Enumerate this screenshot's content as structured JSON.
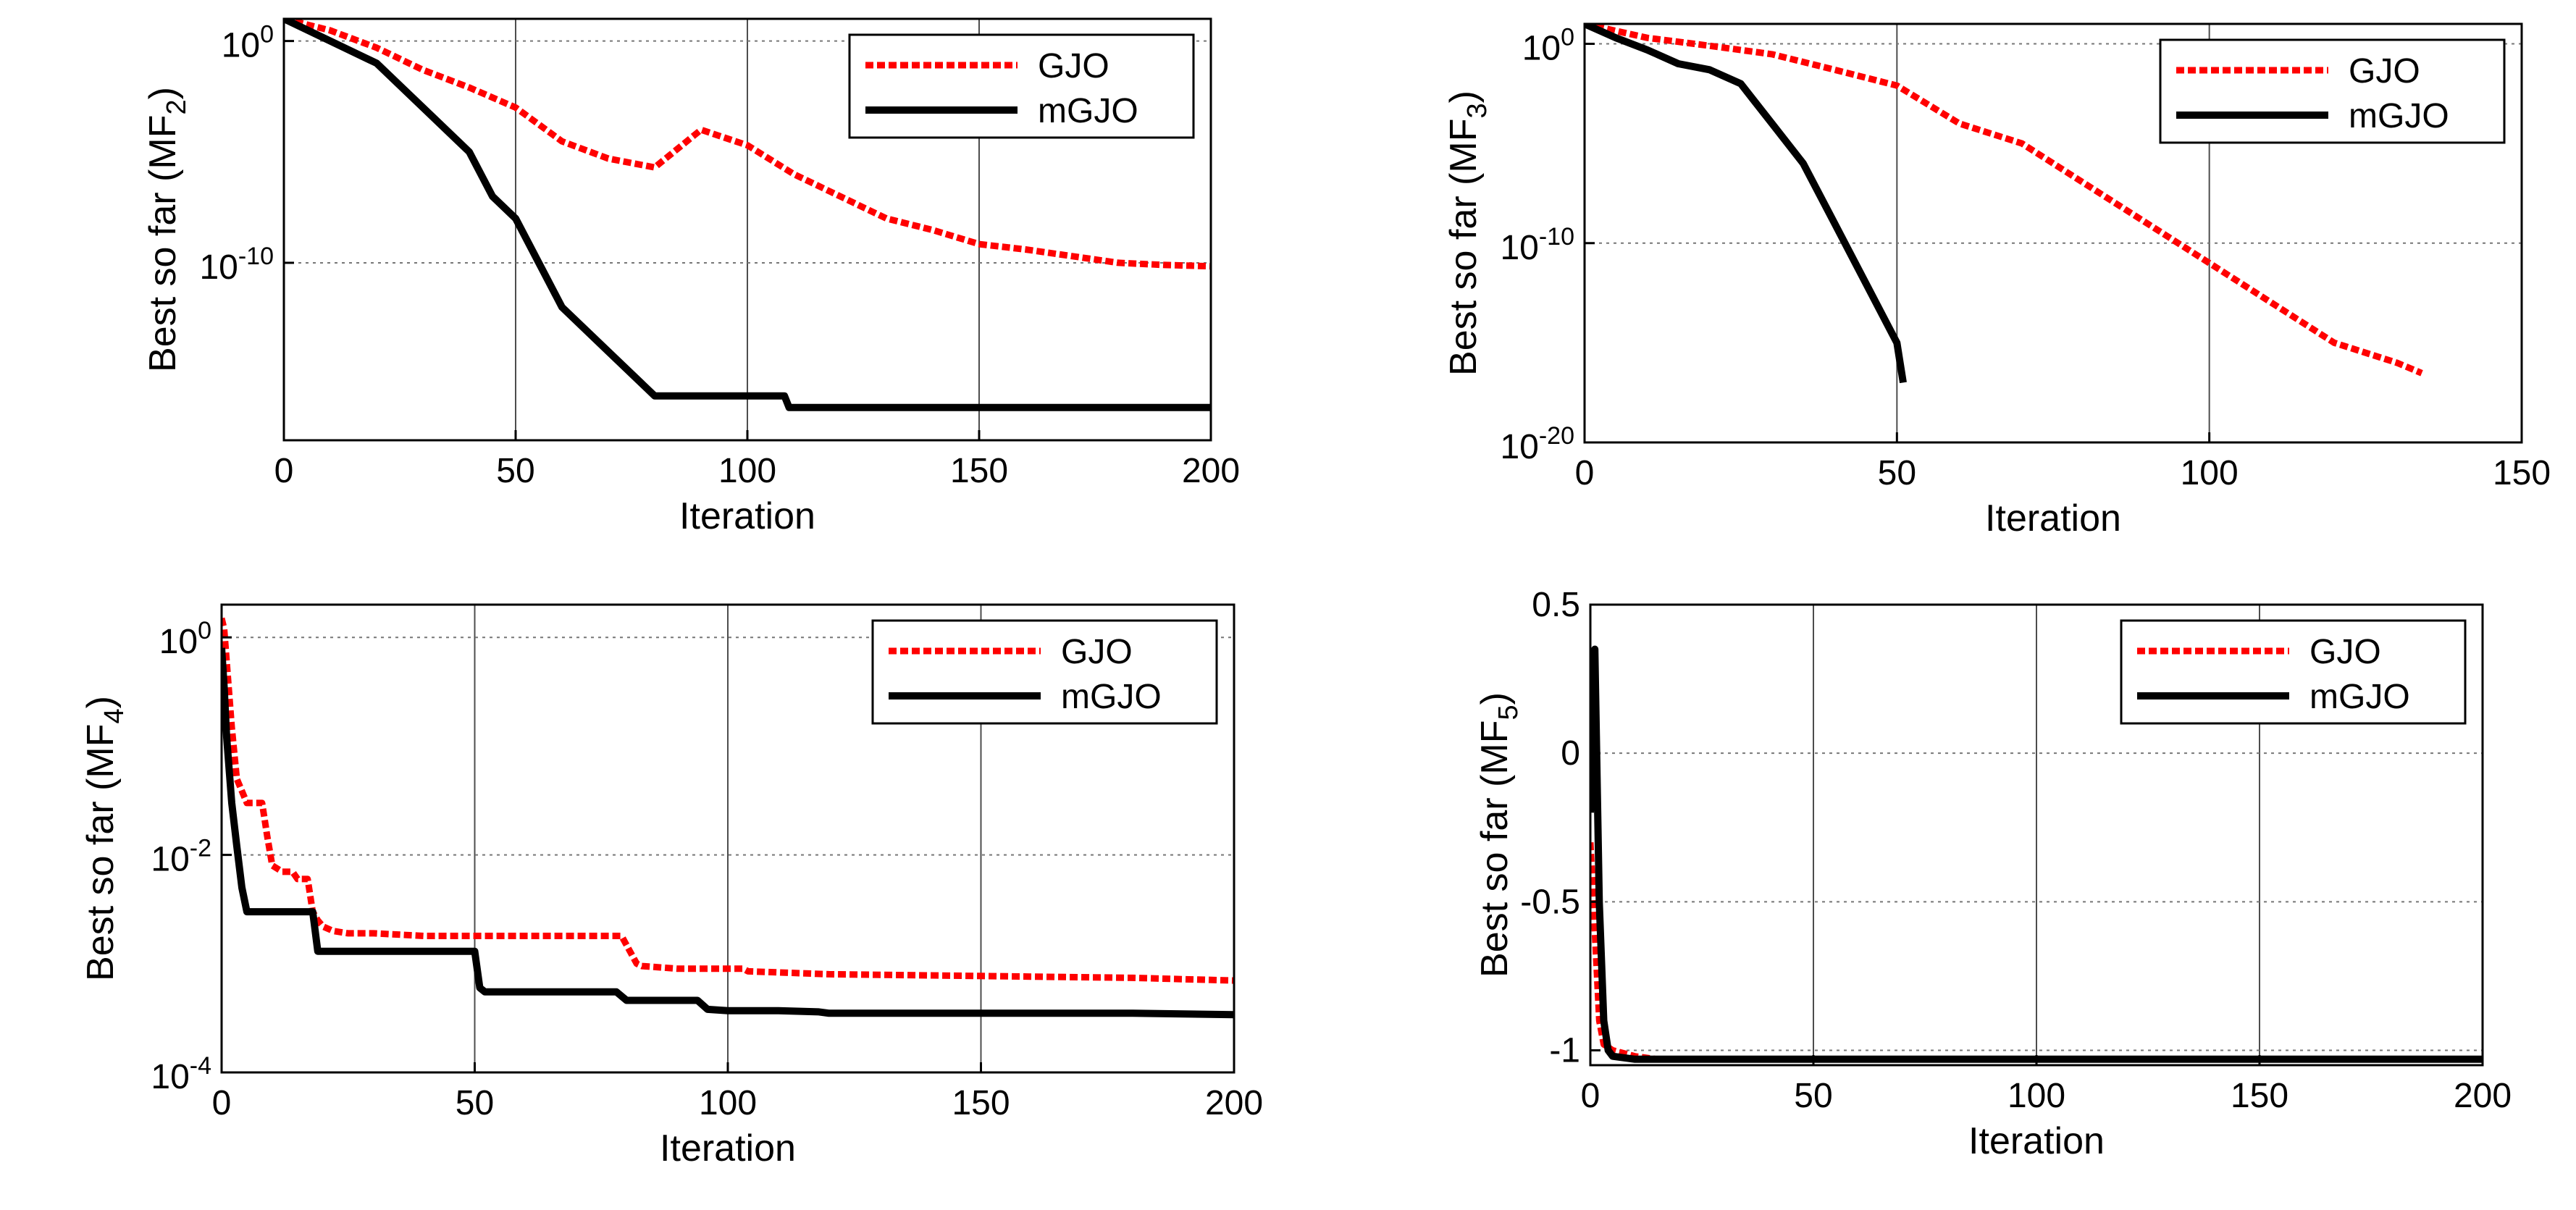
{
  "chart_data": [
    {
      "type": "line",
      "title": "",
      "xlabel": "Iteration",
      "ylabel": {
        "prefix": "Best so far (MF",
        "sub": "2",
        "suffix": ")"
      },
      "yscale": "log",
      "xlim": [
        0,
        200
      ],
      "ylim": [
        1e-18,
        10
      ],
      "xticks": [
        0,
        50,
        100,
        150,
        200
      ],
      "xtick_labels": [
        "0",
        "50",
        "100",
        "150",
        "200"
      ],
      "yticks": [
        1,
        1e-10
      ],
      "ytick_labels": [
        {
          "base": "10",
          "exp": "0"
        },
        {
          "base": "10",
          "exp": "-10"
        }
      ],
      "legend": {
        "position": "top-right"
      },
      "series": [
        {
          "name": "GJO",
          "color": "#ff0000",
          "dash": "dotted",
          "x": [
            0,
            10,
            20,
            30,
            40,
            50,
            60,
            70,
            80,
            90,
            100,
            110,
            120,
            130,
            140,
            150,
            160,
            170,
            180,
            190,
            200
          ],
          "y": [
            10,
            3,
            0.5,
            0.05,
            0.008,
            0.001,
            3e-05,
            5e-06,
            2e-06,
            0.0001,
            2e-05,
            1e-06,
            1e-07,
            1e-08,
            3e-09,
            7e-10,
            4e-10,
            2e-10,
            1e-10,
            8e-11,
            7e-11
          ]
        },
        {
          "name": "mGJO",
          "color": "#000000",
          "dash": "solid",
          "x": [
            0,
            10,
            20,
            30,
            40,
            45,
            50,
            55,
            60,
            70,
            80,
            85,
            100,
            108,
            109,
            200
          ],
          "y": [
            10,
            1,
            0.1,
            0.001,
            1e-05,
            1e-07,
            1e-08,
            1e-10,
            1e-12,
            1e-14,
            1e-16,
            1e-16,
            1e-16,
            1e-16,
            3e-17,
            3e-17
          ]
        }
      ]
    },
    {
      "type": "line",
      "title": "",
      "xlabel": "Iteration",
      "ylabel": {
        "prefix": "Best so far (MF",
        "sub": "3",
        "suffix": ")"
      },
      "yscale": "log",
      "xlim": [
        0,
        150
      ],
      "ylim": [
        1e-20,
        10
      ],
      "xticks": [
        0,
        50,
        100,
        150
      ],
      "xtick_labels": [
        "0",
        "50",
        "100",
        "150"
      ],
      "yticks": [
        1,
        1e-10,
        1e-20
      ],
      "ytick_labels": [
        {
          "base": "10",
          "exp": "0"
        },
        {
          "base": "10",
          "exp": "-10"
        },
        {
          "base": "10",
          "exp": "-20"
        }
      ],
      "legend": {
        "position": "top-right"
      },
      "series": [
        {
          "name": "GJO",
          "color": "#ff0000",
          "dash": "dotted",
          "x": [
            0,
            10,
            20,
            30,
            40,
            50,
            60,
            70,
            80,
            90,
            100,
            110,
            120,
            130,
            134
          ],
          "y": [
            10,
            2,
            0.8,
            0.3,
            0.05,
            0.008,
            0.0001,
            1e-05,
            1e-07,
            1e-09,
            1e-11,
            1e-13,
            1e-15,
            1e-16,
            3e-17
          ]
        },
        {
          "name": "mGJO",
          "color": "#000000",
          "dash": "solid",
          "x": [
            0,
            5,
            10,
            15,
            20,
            25,
            30,
            35,
            40,
            45,
            50,
            51
          ],
          "y": [
            10,
            2,
            0.5,
            0.1,
            0.05,
            0.01,
            0.0001,
            1e-06,
            1e-09,
            1e-12,
            1e-15,
            1e-17
          ]
        }
      ]
    },
    {
      "type": "line",
      "title": "",
      "xlabel": "Iteration",
      "ylabel": {
        "prefix": "Best so far (MF",
        "sub": "4",
        "suffix": ")"
      },
      "yscale": "log",
      "xlim": [
        0,
        200
      ],
      "ylim": [
        0.0001,
        2
      ],
      "xticks": [
        0,
        50,
        100,
        150,
        200
      ],
      "xtick_labels": [
        "0",
        "50",
        "100",
        "150",
        "200"
      ],
      "yticks": [
        1,
        0.01,
        0.0001
      ],
      "ytick_labels": [
        {
          "base": "10",
          "exp": "0"
        },
        {
          "base": "10",
          "exp": "-2"
        },
        {
          "base": "10",
          "exp": "-4"
        }
      ],
      "legend": {
        "position": "top-right"
      },
      "series": [
        {
          "name": "GJO",
          "color": "#ff0000",
          "dash": "dotted",
          "x": [
            0,
            0.5,
            1,
            2,
            3,
            5,
            6,
            8,
            9,
            10,
            12,
            14,
            15,
            17,
            18,
            19,
            20,
            22,
            25,
            30,
            40,
            50,
            60,
            70,
            79,
            82,
            83,
            90,
            100,
            103,
            104,
            120,
            140,
            160,
            180,
            200
          ],
          "y": [
            1.5,
            1.2,
            0.6,
            0.15,
            0.05,
            0.03,
            0.03,
            0.03,
            0.015,
            0.008,
            0.007,
            0.007,
            0.006,
            0.006,
            0.003,
            0.0025,
            0.0022,
            0.002,
            0.0019,
            0.0019,
            0.0018,
            0.0018,
            0.0018,
            0.0018,
            0.0018,
            0.001,
            0.00095,
            0.0009,
            0.0009,
            0.0009,
            0.00085,
            0.0008,
            0.00078,
            0.00076,
            0.00074,
            0.0007
          ]
        },
        {
          "name": "mGJO",
          "color": "#000000",
          "dash": "solid",
          "x": [
            0,
            0.5,
            1,
            2,
            3,
            4,
            5,
            6,
            18,
            19,
            20,
            30,
            40,
            50,
            51,
            52,
            60,
            70,
            78,
            80,
            90,
            94,
            96,
            100,
            110,
            118,
            120,
            150,
            180,
            200
          ],
          "y": [
            0.8,
            0.35,
            0.12,
            0.03,
            0.012,
            0.005,
            0.003,
            0.003,
            0.003,
            0.0013,
            0.0013,
            0.0013,
            0.0013,
            0.0013,
            0.0006,
            0.00055,
            0.00055,
            0.00055,
            0.00055,
            0.00046,
            0.00046,
            0.00046,
            0.00038,
            0.00037,
            0.00037,
            0.00036,
            0.00035,
            0.00035,
            0.00035,
            0.00034
          ]
        }
      ]
    },
    {
      "type": "line",
      "title": "",
      "xlabel": "Iteration",
      "ylabel": {
        "prefix": "Best so far (MF",
        "sub": "5",
        "suffix": ")"
      },
      "yscale": "linear",
      "xlim": [
        0,
        200
      ],
      "ylim": [
        -1.05,
        0.5
      ],
      "xticks": [
        0,
        50,
        100,
        150,
        200
      ],
      "xtick_labels": [
        "0",
        "50",
        "100",
        "150",
        "200"
      ],
      "yticks": [
        0.5,
        0,
        -0.5,
        -1
      ],
      "ytick_labels": [
        "0.5",
        "0",
        "-0.5",
        "-1"
      ],
      "legend": {
        "position": "top-right"
      },
      "series": [
        {
          "name": "GJO",
          "color": "#ff0000",
          "dash": "dotted",
          "x": [
            0,
            1,
            2,
            3,
            5,
            10,
            15,
            20,
            50,
            100,
            150,
            200
          ],
          "y": [
            -0.3,
            -0.6,
            -0.9,
            -0.98,
            -1.0,
            -1.02,
            -1.03,
            -1.03,
            -1.03,
            -1.03,
            -1.03,
            -1.03
          ]
        },
        {
          "name": "mGJO",
          "color": "#000000",
          "dash": "solid",
          "x": [
            0,
            1,
            2,
            3,
            4,
            5,
            10,
            20,
            50,
            100,
            150,
            200
          ],
          "y": [
            -0.2,
            0.35,
            -0.5,
            -0.9,
            -1.0,
            -1.02,
            -1.03,
            -1.03,
            -1.03,
            -1.03,
            -1.03,
            -1.03
          ]
        }
      ]
    }
  ]
}
